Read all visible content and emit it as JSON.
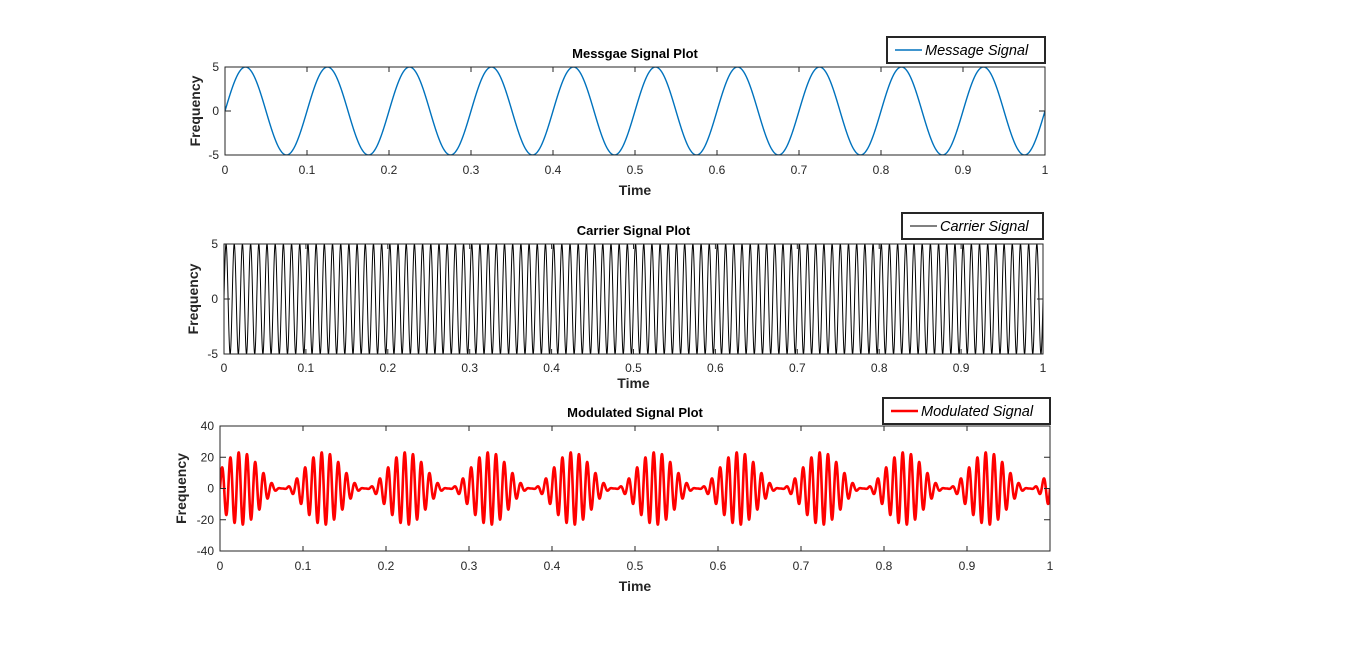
{
  "chart_data": [
    {
      "type": "line",
      "title": "Messgae Signal Plot",
      "xlabel": "Time",
      "ylabel": "Frequency",
      "xlim": [
        0,
        1
      ],
      "ylim": [
        -5,
        5
      ],
      "xticks": [
        0,
        0.1,
        0.2,
        0.3,
        0.4,
        0.5,
        0.6,
        0.7,
        0.8,
        0.9,
        1
      ],
      "xtick_labels": [
        "0",
        "0.1",
        "0.2",
        "0.3",
        "0.4",
        "0.5",
        "0.6",
        "0.7",
        "0.8",
        "0.9",
        "1"
      ],
      "yticks": [
        -5,
        0,
        5
      ],
      "ytick_labels": [
        "-5",
        "0",
        "5"
      ],
      "legend_position": "top-right",
      "series": [
        {
          "name": "Message Signal",
          "color": "#0072bd",
          "width": 1.4,
          "function": "5*sin(2*pi*10*t)",
          "amplitude": 5,
          "frequency_hz": 10,
          "t_start": 0,
          "t_end": 1
        }
      ]
    },
    {
      "type": "line",
      "title": "Carrier Signal Plot",
      "xlabel": "Time",
      "ylabel": "Frequency",
      "xlim": [
        0,
        1
      ],
      "ylim": [
        -5,
        5
      ],
      "xticks": [
        0,
        0.1,
        0.2,
        0.3,
        0.4,
        0.5,
        0.6,
        0.7,
        0.8,
        0.9,
        1
      ],
      "xtick_labels": [
        "0",
        "0.1",
        "0.2",
        "0.3",
        "0.4",
        "0.5",
        "0.6",
        "0.7",
        "0.8",
        "0.9",
        "1"
      ],
      "yticks": [
        -5,
        0,
        5
      ],
      "ytick_labels": [
        "-5",
        "0",
        "5"
      ],
      "legend_position": "top-right",
      "series": [
        {
          "name": "Carrier Signal",
          "color": "#000000",
          "width": 1.0,
          "function": "5*sin(2*pi*100*t)",
          "amplitude": 5,
          "frequency_hz": 100,
          "t_start": 0,
          "t_end": 1
        }
      ]
    },
    {
      "type": "line",
      "title": "Modulated Signal Plot",
      "xlabel": "Time",
      "ylabel": "Frequency",
      "xlim": [
        0,
        1
      ],
      "ylim": [
        -40,
        40
      ],
      "xticks": [
        0,
        0.1,
        0.2,
        0.3,
        0.4,
        0.5,
        0.6,
        0.7,
        0.8,
        0.9,
        1
      ],
      "xtick_labels": [
        "0",
        "0.1",
        "0.2",
        "0.3",
        "0.4",
        "0.5",
        "0.6",
        "0.7",
        "0.8",
        "0.9",
        "1"
      ],
      "yticks": [
        -40,
        -20,
        0,
        20,
        40
      ],
      "ytick_labels": [
        "-40",
        "-20",
        "0",
        "20",
        "40"
      ],
      "legend_position": "top-right",
      "series": [
        {
          "name": "Modulated Signal",
          "color": "#ff0000",
          "width": 2.6,
          "function": "(5+5*sin(2*pi*10*t))*(5*sin(2*pi*100*t))/2.15",
          "carrier_frequency_hz": 100,
          "message_frequency_hz": 10,
          "peak_value": 23,
          "t_start": 0,
          "t_end": 1
        }
      ]
    }
  ]
}
